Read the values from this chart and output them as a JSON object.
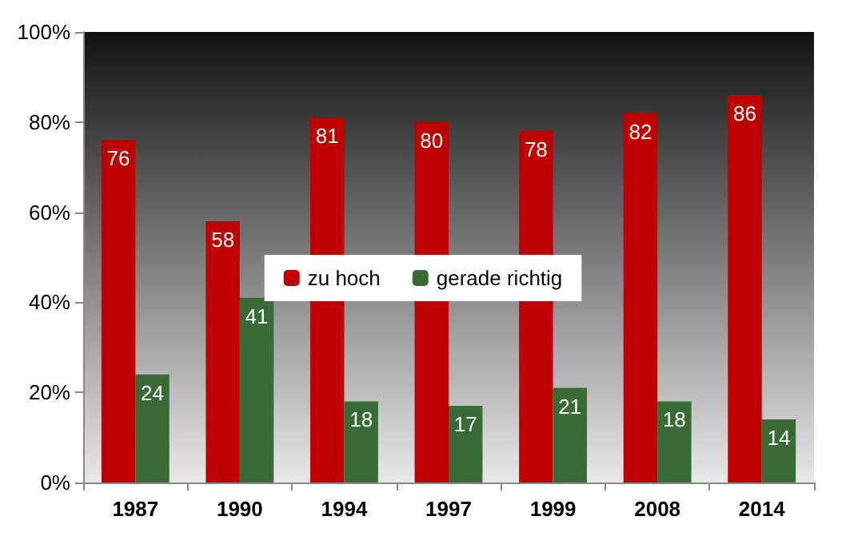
{
  "chart_data": {
    "type": "bar",
    "categories": [
      "1987",
      "1990",
      "1994",
      "1997",
      "1999",
      "2008",
      "2014"
    ],
    "series": [
      {
        "name": "zu hoch",
        "color": "#c00000",
        "values": [
          76,
          58,
          81,
          80,
          78,
          82,
          86
        ]
      },
      {
        "name": "gerade richtig",
        "color": "#386b35",
        "values": [
          24,
          41,
          18,
          17,
          21,
          18,
          14
        ]
      }
    ],
    "ylim": [
      0,
      100
    ],
    "yticks": [
      {
        "value": 0,
        "label": "0%"
      },
      {
        "value": 20,
        "label": "20%"
      },
      {
        "value": 40,
        "label": "40%"
      },
      {
        "value": 60,
        "label": "60%"
      },
      {
        "value": 80,
        "label": "80%"
      },
      {
        "value": 100,
        "label": "100%"
      }
    ],
    "grid": false,
    "legend": "center",
    "data_labels": true
  }
}
